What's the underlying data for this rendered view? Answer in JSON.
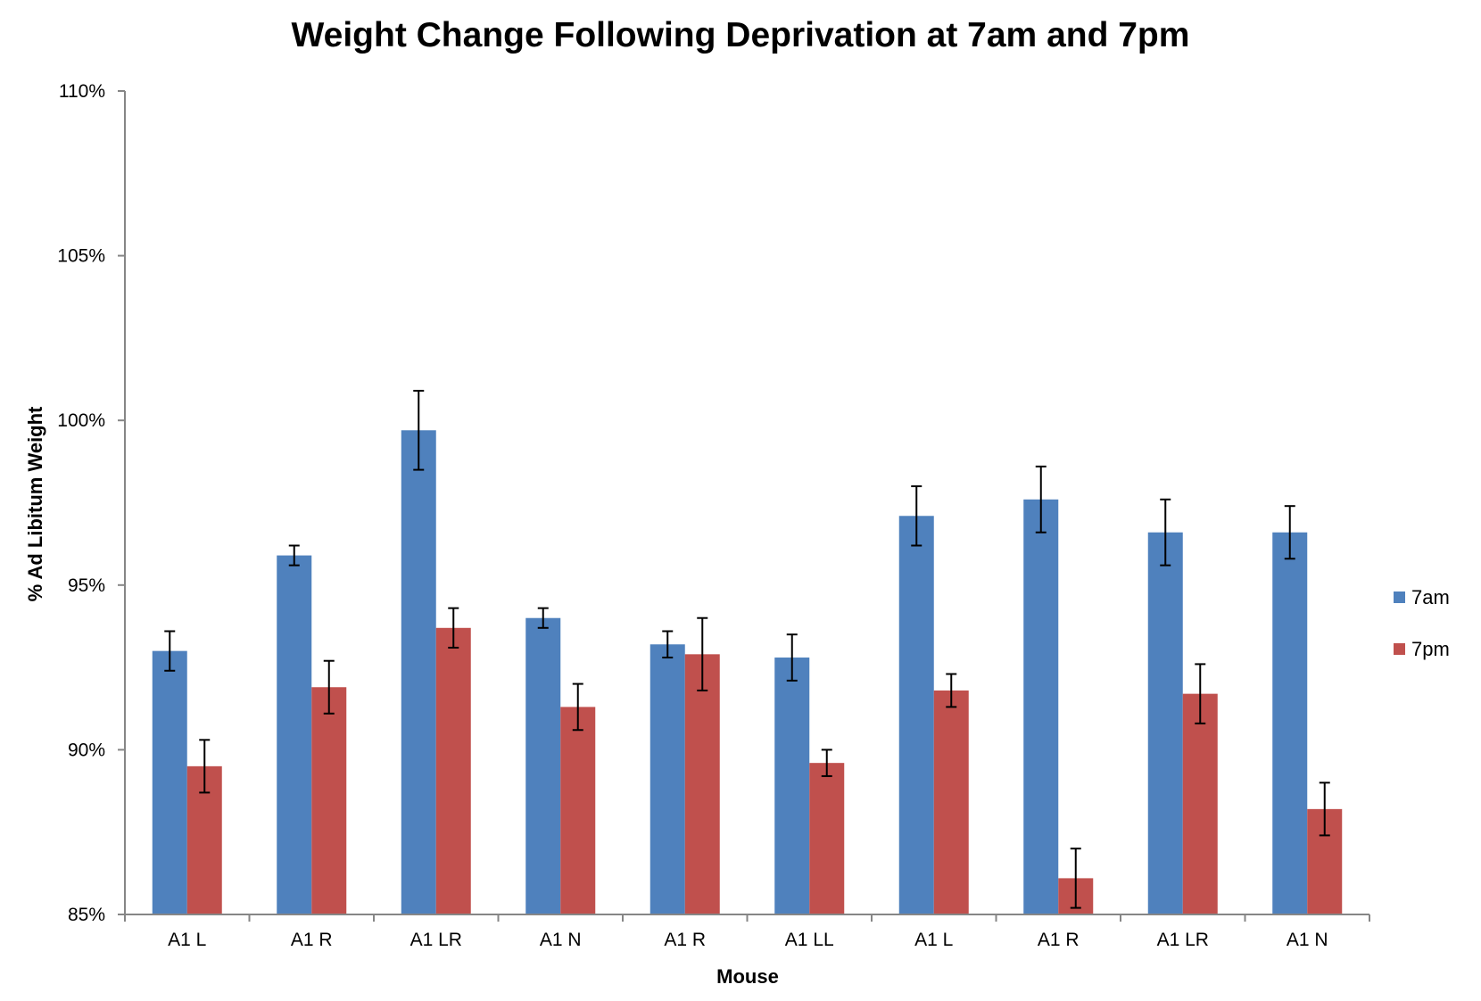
{
  "chart_data": {
    "type": "bar",
    "title": "Weight Change Following Deprivation at 7am and 7pm",
    "xlabel": "Mouse",
    "ylabel": "% Ad Libitum Weight",
    "ylim": [
      85,
      110
    ],
    "yticks": [
      "85%",
      "90%",
      "95%",
      "100%",
      "105%",
      "110%"
    ],
    "ytick_values": [
      85,
      90,
      95,
      100,
      105,
      110
    ],
    "categories": [
      "A1 L",
      "A1 R",
      "A1 LR",
      "A1 N",
      "A1 R",
      "A1 LL",
      "A1 L",
      "A1 R",
      "A1 LR",
      "A1 N"
    ],
    "series": [
      {
        "name": "7am",
        "color": "#4f81bd",
        "values": [
          93.0,
          95.9,
          99.7,
          94.0,
          93.2,
          92.8,
          97.1,
          97.6,
          96.6,
          96.6
        ],
        "errors": [
          0.6,
          0.3,
          1.2,
          0.3,
          0.4,
          0.7,
          0.9,
          1.0,
          1.0,
          0.8
        ]
      },
      {
        "name": "7pm",
        "color": "#c0504d",
        "values": [
          89.5,
          91.9,
          93.7,
          91.3,
          92.9,
          89.6,
          91.8,
          86.1,
          91.7,
          88.2
        ],
        "errors": [
          0.8,
          0.8,
          0.6,
          0.7,
          1.1,
          0.4,
          0.5,
          0.9,
          0.9,
          0.8
        ]
      }
    ],
    "grid": false,
    "legend_position": "right"
  }
}
